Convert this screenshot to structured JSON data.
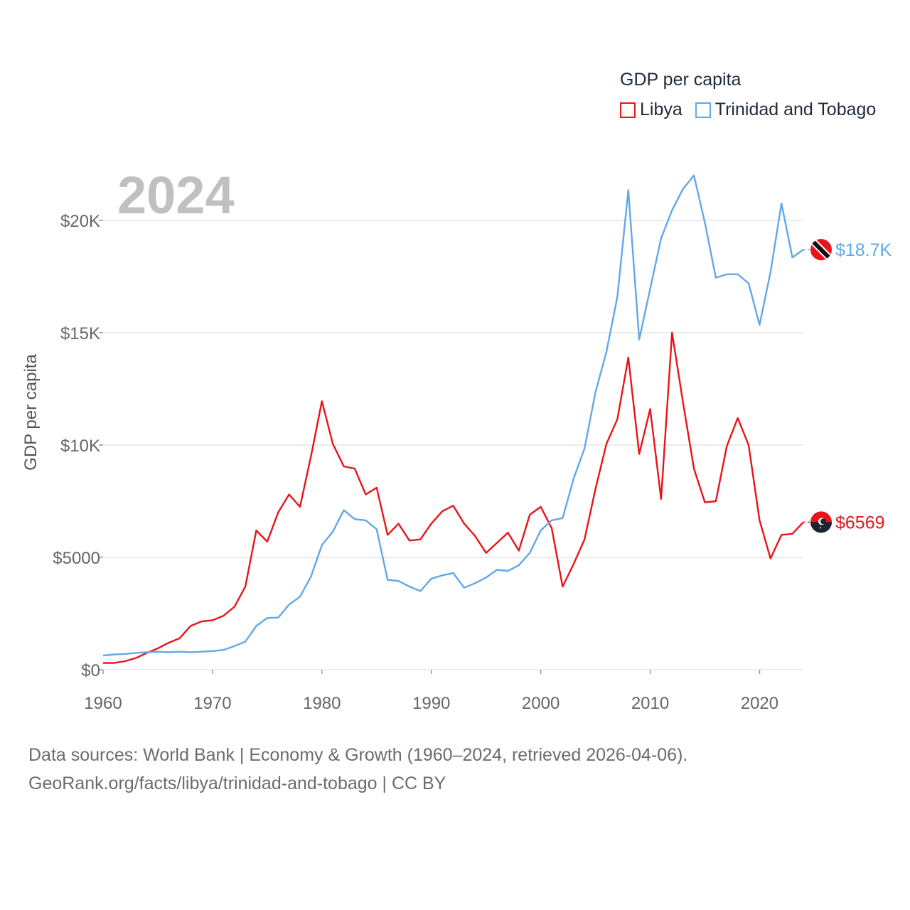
{
  "legend": {
    "title": "GDP per capita",
    "items": [
      {
        "label": "Libya",
        "color": "#e8141b"
      },
      {
        "label": "Trinidad and Tobago",
        "color": "#62a8e6"
      }
    ]
  },
  "footer": {
    "line1": "Data sources: World Bank | Economy & Growth (1960–2024, retrieved 2026-04-06).",
    "line2": "GeoRank.org/facts/libya/trinidad-and-tobago | CC BY"
  },
  "chart_data": {
    "type": "line",
    "year_label": "2024",
    "ylabel": "GDP per capita",
    "xlabel": "",
    "xlim": [
      1960,
      2024
    ],
    "ylim": [
      0,
      22000
    ],
    "x_ticks": [
      1960,
      1970,
      1980,
      1990,
      2000,
      2010,
      2020
    ],
    "x_tick_labels": [
      "1960",
      "1970",
      "1980",
      "1990",
      "2000",
      "2010",
      "2020"
    ],
    "y_ticks": [
      0,
      5000,
      10000,
      15000,
      20000
    ],
    "y_tick_labels": [
      "$0",
      "$5000",
      "$10K",
      "$15K",
      "$20K"
    ],
    "grid": true,
    "x": [
      1960,
      1961,
      1962,
      1963,
      1964,
      1965,
      1966,
      1967,
      1968,
      1969,
      1970,
      1971,
      1972,
      1973,
      1974,
      1975,
      1976,
      1977,
      1978,
      1979,
      1980,
      1981,
      1982,
      1983,
      1984,
      1985,
      1986,
      1987,
      1988,
      1989,
      1990,
      1991,
      1992,
      1993,
      1994,
      1995,
      1996,
      1997,
      1998,
      1999,
      2000,
      2001,
      2002,
      2003,
      2004,
      2005,
      2006,
      2007,
      2008,
      2009,
      2010,
      2011,
      2012,
      2013,
      2014,
      2015,
      2016,
      2017,
      2018,
      2019,
      2020,
      2021,
      2022,
      2023,
      2024
    ],
    "series": [
      {
        "name": "Libya",
        "color": "#e8141b",
        "end_label": "$6569",
        "values": [
          300,
          300,
          380,
          520,
          750,
          950,
          1200,
          1400,
          1950,
          2150,
          2200,
          2400,
          2800,
          3700,
          6200,
          5700,
          7000,
          7800,
          7250,
          9500,
          11950,
          10050,
          9050,
          8950,
          7800,
          8100,
          6000,
          6500,
          5750,
          5800,
          6500,
          7050,
          7300,
          6500,
          5950,
          5200,
          5650,
          6100,
          5300,
          6900,
          7250,
          6300,
          3700,
          4700,
          5800,
          8050,
          10050,
          11150,
          13900,
          9600,
          11600,
          7600,
          15000,
          11900,
          8950,
          7450,
          7500,
          9950,
          11200,
          10000,
          6650,
          4950,
          6000,
          6050,
          6569
        ]
      },
      {
        "name": "Trinidad and Tobago",
        "color": "#62a8e6",
        "end_label": "$18.7K",
        "values": [
          630,
          680,
          700,
          750,
          780,
          800,
          780,
          800,
          780,
          800,
          830,
          880,
          1050,
          1250,
          1950,
          2300,
          2320,
          2900,
          3250,
          4150,
          5550,
          6150,
          7100,
          6700,
          6650,
          6250,
          4000,
          3950,
          3700,
          3500,
          4050,
          4200,
          4300,
          3650,
          3850,
          4100,
          4450,
          4400,
          4650,
          5200,
          6200,
          6650,
          6750,
          8500,
          9850,
          12350,
          14150,
          16600,
          21350,
          14700,
          16950,
          19200,
          20450,
          21400,
          22000,
          19900,
          17450,
          17600,
          17600,
          17200,
          15350,
          17700,
          20750,
          18350,
          18700
        ]
      }
    ]
  }
}
